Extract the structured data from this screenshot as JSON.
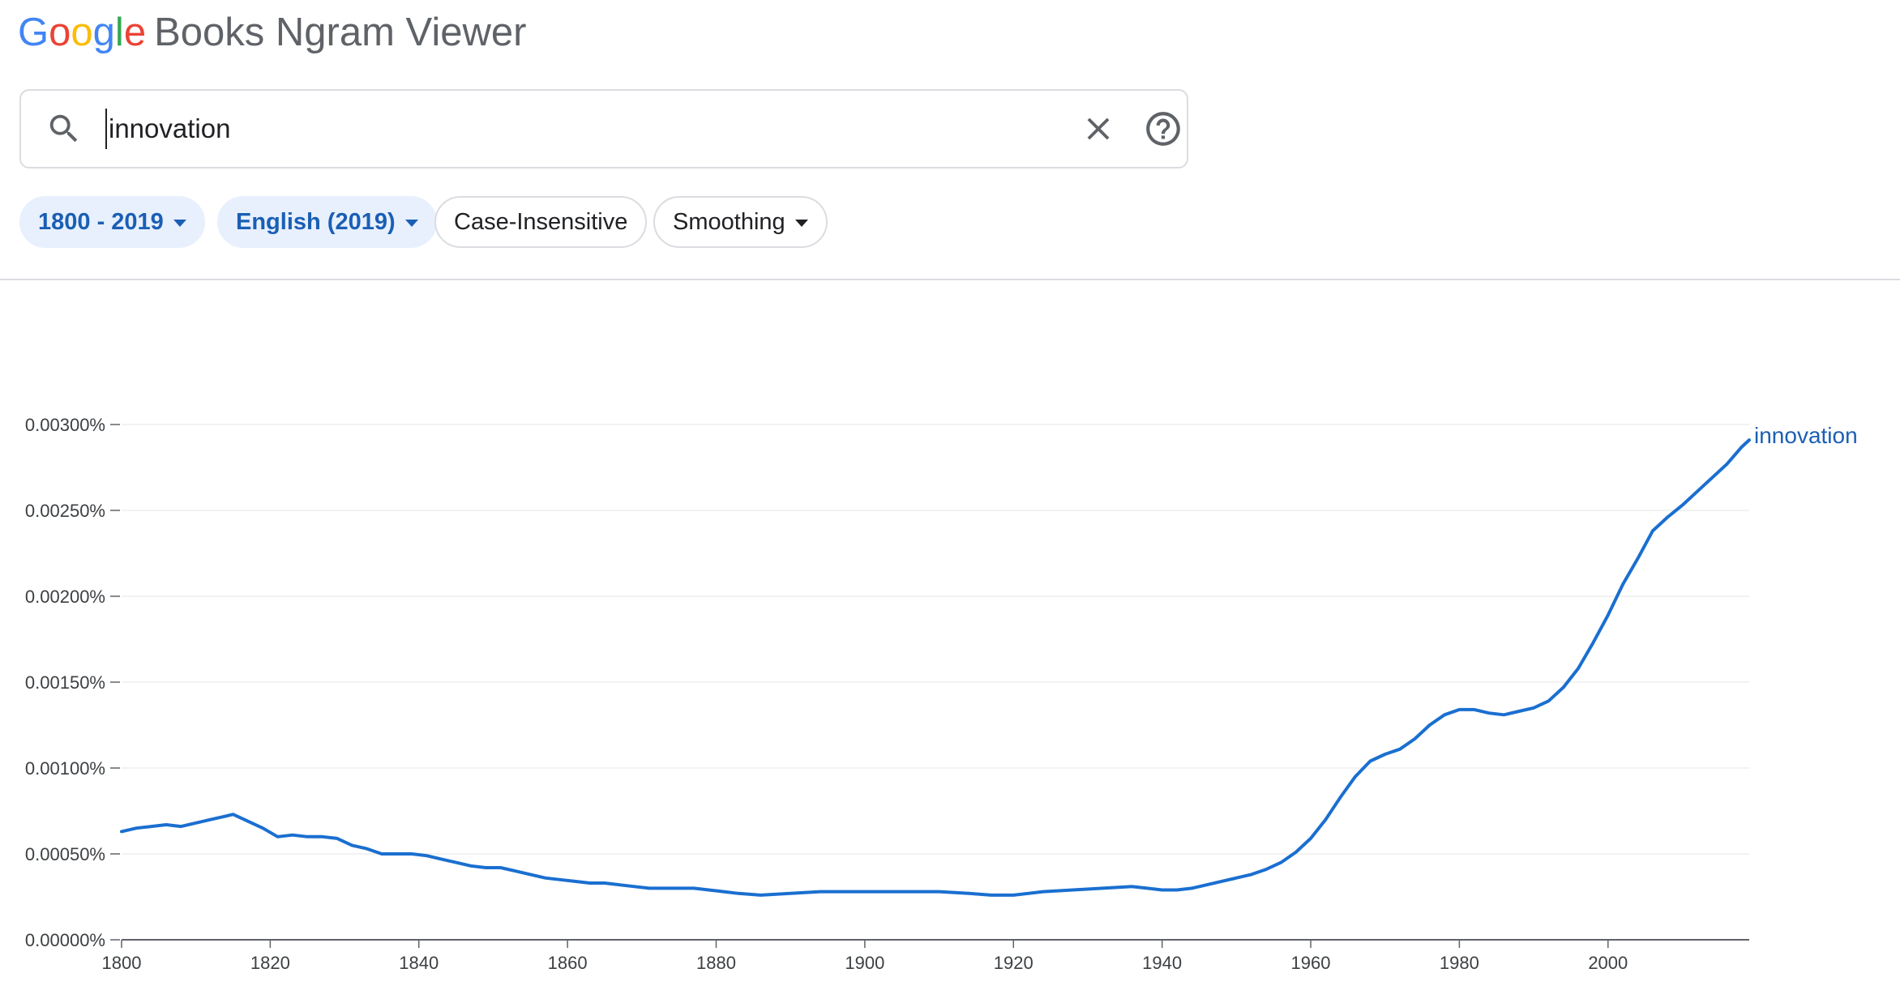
{
  "app": {
    "logo_word": [
      "G",
      "o",
      "o",
      "g",
      "l",
      "e"
    ],
    "product_name": "Books Ngram Viewer"
  },
  "search": {
    "query": "innovation"
  },
  "filters": [
    {
      "label": "1800 - 2019",
      "active": true,
      "has_caret": true
    },
    {
      "label": "English (2019)",
      "active": true,
      "has_caret": true
    },
    {
      "label": "Case-Insensitive",
      "active": false,
      "has_caret": false
    },
    {
      "label": "Smoothing",
      "active": false,
      "has_caret": true
    }
  ],
  "icons": {
    "search": "search-icon",
    "clear": "close-icon",
    "help": "help-icon",
    "dropdown": "caret-down-icon"
  },
  "colors": {
    "accent": "#1a5fb4",
    "series": "#1a6fd0",
    "chip_active_bg": "#e8f0fe",
    "grid": "#eeeeee",
    "axis": "#5f6368"
  },
  "chart_data": {
    "type": "line",
    "xlim": [
      1800,
      2019
    ],
    "ylim": [
      0,
      0.003
    ],
    "x_ticks": [
      1800,
      1820,
      1840,
      1860,
      1880,
      1900,
      1920,
      1940,
      1960,
      1980,
      2000
    ],
    "y_ticks": [
      {
        "value": 0.0,
        "label": "0.00000%"
      },
      {
        "value": 0.0005,
        "label": "0.00050%"
      },
      {
        "value": 0.001,
        "label": "0.00100%"
      },
      {
        "value": 0.0015,
        "label": "0.00150%"
      },
      {
        "value": 0.002,
        "label": "0.00200%"
      },
      {
        "value": 0.0025,
        "label": "0.00250%"
      },
      {
        "value": 0.003,
        "label": "0.00300%"
      }
    ],
    "grid": true,
    "series": [
      {
        "name": "innovation",
        "x": [
          1800,
          1802,
          1804,
          1806,
          1808,
          1810,
          1812,
          1814,
          1815,
          1817,
          1819,
          1821,
          1823,
          1825,
          1827,
          1829,
          1831,
          1833,
          1835,
          1837,
          1839,
          1841,
          1843,
          1845,
          1847,
          1849,
          1851,
          1853,
          1855,
          1857,
          1859,
          1861,
          1863,
          1865,
          1867,
          1869,
          1871,
          1873,
          1875,
          1877,
          1879,
          1881,
          1883,
          1886,
          1890,
          1894,
          1898,
          1902,
          1906,
          1910,
          1914,
          1917,
          1920,
          1924,
          1928,
          1932,
          1936,
          1938,
          1940,
          1942,
          1944,
          1946,
          1948,
          1950,
          1952,
          1954,
          1956,
          1958,
          1960,
          1962,
          1964,
          1966,
          1968,
          1970,
          1972,
          1974,
          1976,
          1978,
          1980,
          1982,
          1984,
          1986,
          1988,
          1990,
          1992,
          1994,
          1996,
          1998,
          2000,
          2002,
          2004,
          2006,
          2008,
          2010,
          2012,
          2014,
          2016,
          2018,
          2019
        ],
        "values": [
          0.00063,
          0.00065,
          0.00066,
          0.00067,
          0.00066,
          0.00068,
          0.0007,
          0.00072,
          0.00073,
          0.00069,
          0.00065,
          0.0006,
          0.00061,
          0.0006,
          0.0006,
          0.00059,
          0.00055,
          0.00053,
          0.0005,
          0.0005,
          0.0005,
          0.00049,
          0.00047,
          0.00045,
          0.00043,
          0.00042,
          0.00042,
          0.0004,
          0.00038,
          0.00036,
          0.00035,
          0.00034,
          0.00033,
          0.00033,
          0.00032,
          0.00031,
          0.0003,
          0.0003,
          0.0003,
          0.0003,
          0.00029,
          0.00028,
          0.00027,
          0.00026,
          0.00027,
          0.00028,
          0.00028,
          0.00028,
          0.00028,
          0.00028,
          0.00027,
          0.00026,
          0.00026,
          0.00028,
          0.00029,
          0.0003,
          0.00031,
          0.0003,
          0.00029,
          0.00029,
          0.0003,
          0.00032,
          0.00034,
          0.00036,
          0.00038,
          0.00041,
          0.00045,
          0.00051,
          0.00059,
          0.0007,
          0.00083,
          0.00095,
          0.00104,
          0.00108,
          0.00111,
          0.00117,
          0.00125,
          0.00131,
          0.00134,
          0.00134,
          0.00132,
          0.00131,
          0.00133,
          0.00135,
          0.00139,
          0.00147,
          0.00158,
          0.00173,
          0.00189,
          0.00207,
          0.00222,
          0.00238,
          0.00246,
          0.00253,
          0.00261,
          0.00269,
          0.00277,
          0.00287,
          0.00291
        ]
      }
    ]
  }
}
